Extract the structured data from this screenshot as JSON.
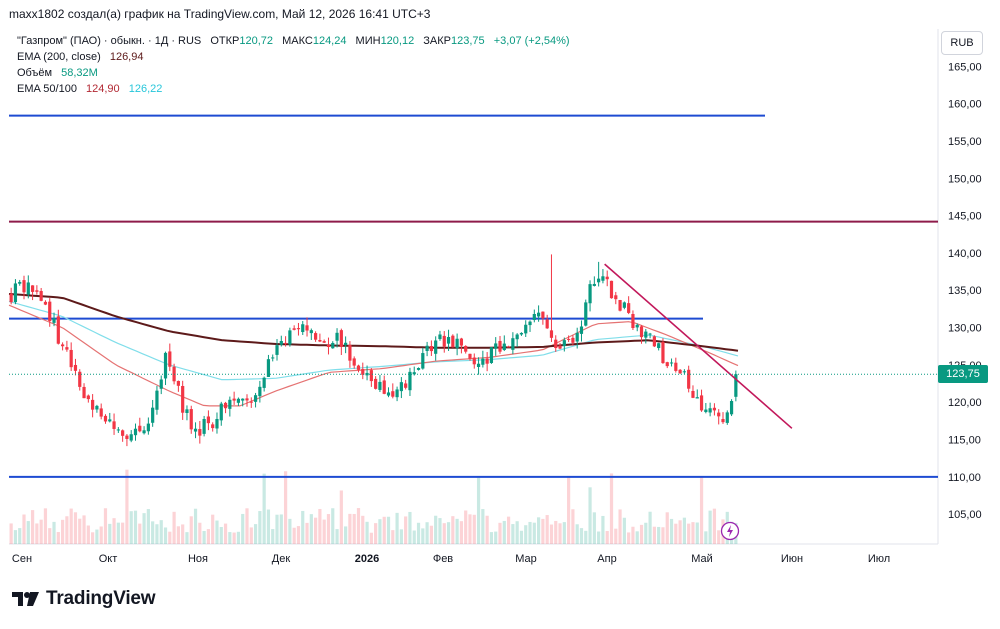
{
  "header": {
    "attribution": "maxx1802 создал(а) график на TradingView.com, Май 12, 2026 16:41 UTC+3"
  },
  "legend": {
    "symbol": "\"Газпром\" (ПАО) · обыкн. · 1Д · RUS",
    "open_label": "ОТКР",
    "open": "120,72",
    "high_label": "МАКС",
    "high": "124,24",
    "low_label": "МИН",
    "low": "120,12",
    "close_label": "ЗАКР",
    "close": "123,75",
    "change": "+3,07 (+2,54%)",
    "ema200_label": "EMA (200, close)",
    "ema200_value": "126,94",
    "volume_label": "Объём",
    "volume_value": "58,32M",
    "ema50_100_label": "EMA 50/100",
    "ema50_value": "124,90",
    "ema100_value": "126,22"
  },
  "currency_button": "RUB",
  "last_price_tag": "123,75",
  "logo_text": "TradingView",
  "colors": {
    "up": "#089981",
    "down": "#f23645",
    "ema200": "#5d1a1a",
    "ema50": "#e57373",
    "ema100": "#80deea",
    "blue_level": "#1e4bd2",
    "purple_level": "#8e1b4a",
    "trendline": "#c2185b"
  },
  "chart_data": {
    "type": "candlestick",
    "y_axis": {
      "range": [
        101,
        170
      ],
      "ticks": [
        "165,00",
        "160,00",
        "155,00",
        "150,00",
        "145,00",
        "140,00",
        "135,00",
        "130,00",
        "125,00",
        "120,00",
        "115,00",
        "110,00",
        "105,00"
      ]
    },
    "x_axis_labels": [
      "Сен",
      "Окт",
      "Ноя",
      "Дек",
      "2026",
      "Фев",
      "Мар",
      "Апр",
      "Май",
      "Июн",
      "Июл"
    ],
    "horizontal_levels": [
      {
        "price": 158.4,
        "color": "blue_level",
        "from": "Сен",
        "to": "Июн"
      },
      {
        "price": 144.2,
        "color": "purple_level",
        "from": "Сен",
        "to": "end"
      },
      {
        "price": 131.2,
        "color": "blue_level",
        "from": "Сен",
        "to": "Апр"
      },
      {
        "price": 110.0,
        "color": "blue_level",
        "from": "Сен",
        "to": "end"
      }
    ],
    "trendline": {
      "from": [
        0.67,
        138.5
      ],
      "to": [
        0.83,
        116.5
      ]
    },
    "price_path": [
      [
        0.0,
        134.5
      ],
      [
        0.02,
        136.0
      ],
      [
        0.04,
        133.0
      ],
      [
        0.055,
        128.0
      ],
      [
        0.075,
        123.0
      ],
      [
        0.095,
        119.0
      ],
      [
        0.115,
        117.0
      ],
      [
        0.135,
        115.0
      ],
      [
        0.15,
        116.0
      ],
      [
        0.165,
        121.0
      ],
      [
        0.175,
        126.5
      ],
      [
        0.19,
        121.0
      ],
      [
        0.205,
        116.0
      ],
      [
        0.225,
        117.0
      ],
      [
        0.24,
        119.5
      ],
      [
        0.255,
        121.0
      ],
      [
        0.27,
        119.0
      ],
      [
        0.285,
        123.0
      ],
      [
        0.3,
        128.0
      ],
      [
        0.32,
        129.0
      ],
      [
        0.34,
        130.5
      ],
      [
        0.355,
        127.0
      ],
      [
        0.37,
        128.5
      ],
      [
        0.385,
        126.0
      ],
      [
        0.4,
        124.0
      ],
      [
        0.415,
        122.0
      ],
      [
        0.43,
        120.5
      ],
      [
        0.445,
        122.0
      ],
      [
        0.46,
        125.0
      ],
      [
        0.475,
        127.5
      ],
      [
        0.49,
        128.5
      ],
      [
        0.51,
        127.0
      ],
      [
        0.525,
        124.5
      ],
      [
        0.54,
        126.0
      ],
      [
        0.555,
        127.5
      ],
      [
        0.57,
        128.0
      ],
      [
        0.585,
        131.5
      ],
      [
        0.6,
        132.5
      ],
      [
        0.615,
        128.0
      ],
      [
        0.63,
        127.5
      ],
      [
        0.645,
        131.0
      ],
      [
        0.655,
        135.5
      ],
      [
        0.665,
        137.5
      ],
      [
        0.675,
        135.5
      ],
      [
        0.69,
        133.0
      ],
      [
        0.7,
        131.5
      ],
      [
        0.715,
        129.5
      ],
      [
        0.73,
        127.5
      ],
      [
        0.745,
        125.0
      ],
      [
        0.76,
        123.5
      ],
      [
        0.775,
        121.0
      ],
      [
        0.785,
        118.5
      ],
      [
        0.795,
        119.0
      ],
      [
        0.805,
        117.5
      ],
      [
        0.815,
        120.5
      ],
      [
        0.82,
        123.75
      ]
    ],
    "spikes": [
      {
        "x": 0.61,
        "high": 139.8
      },
      {
        "x": 0.664,
        "high": 138.8
      }
    ],
    "ema200_path": [
      [
        0.0,
        134.5
      ],
      [
        0.06,
        134.0
      ],
      [
        0.12,
        131.5
      ],
      [
        0.18,
        129.5
      ],
      [
        0.24,
        128.3
      ],
      [
        0.3,
        127.8
      ],
      [
        0.36,
        127.6
      ],
      [
        0.42,
        127.5
      ],
      [
        0.48,
        127.3
      ],
      [
        0.54,
        127.3
      ],
      [
        0.6,
        127.4
      ],
      [
        0.66,
        128.0
      ],
      [
        0.72,
        128.3
      ],
      [
        0.78,
        127.5
      ],
      [
        0.82,
        126.9
      ]
    ],
    "ema50_path": [
      [
        0.0,
        133.0
      ],
      [
        0.06,
        130.0
      ],
      [
        0.12,
        125.0
      ],
      [
        0.18,
        121.5
      ],
      [
        0.22,
        119.5
      ],
      [
        0.26,
        119.5
      ],
      [
        0.3,
        121.5
      ],
      [
        0.36,
        124.0
      ],
      [
        0.42,
        124.5
      ],
      [
        0.48,
        125.5
      ],
      [
        0.54,
        126.0
      ],
      [
        0.6,
        127.0
      ],
      [
        0.66,
        130.5
      ],
      [
        0.7,
        130.8
      ],
      [
        0.74,
        129.0
      ],
      [
        0.79,
        126.5
      ],
      [
        0.82,
        124.9
      ]
    ],
    "ema100_path": [
      [
        0.0,
        133.5
      ],
      [
        0.06,
        131.5
      ],
      [
        0.12,
        128.0
      ],
      [
        0.18,
        125.0
      ],
      [
        0.24,
        123.0
      ],
      [
        0.3,
        123.2
      ],
      [
        0.36,
        124.3
      ],
      [
        0.42,
        124.8
      ],
      [
        0.48,
        125.4
      ],
      [
        0.54,
        125.7
      ],
      [
        0.6,
        126.3
      ],
      [
        0.66,
        128.4
      ],
      [
        0.72,
        129.0
      ],
      [
        0.78,
        127.5
      ],
      [
        0.82,
        126.2
      ]
    ]
  }
}
